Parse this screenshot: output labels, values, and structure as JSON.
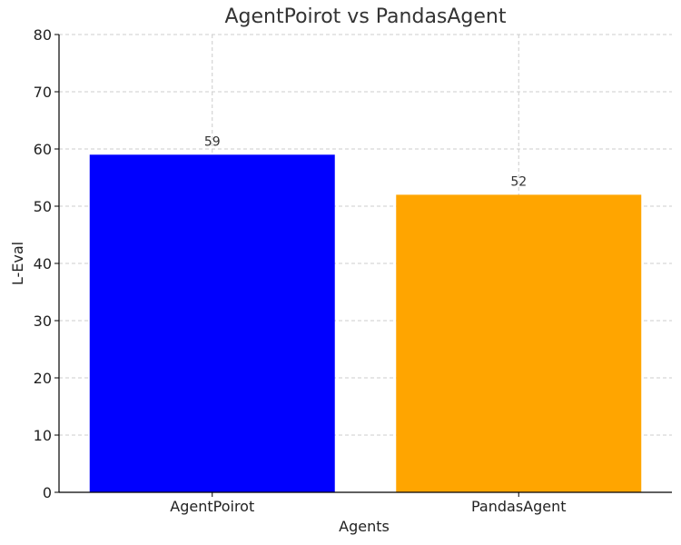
{
  "chart_data": {
    "type": "bar",
    "title": "AgentPoirot vs PandasAgent",
    "xlabel": "Agents",
    "ylabel": "L-Eval",
    "categories": [
      "AgentPoirot",
      "PandasAgent"
    ],
    "values": [
      59,
      52
    ],
    "data_labels": [
      "59",
      "52"
    ],
    "colors": [
      "#0000ff",
      "#ffa500"
    ],
    "ylim": [
      0,
      80
    ],
    "yticks": [
      0,
      10,
      20,
      30,
      40,
      50,
      60,
      70,
      80
    ],
    "grid": true,
    "grid_color": "#cccccc"
  }
}
